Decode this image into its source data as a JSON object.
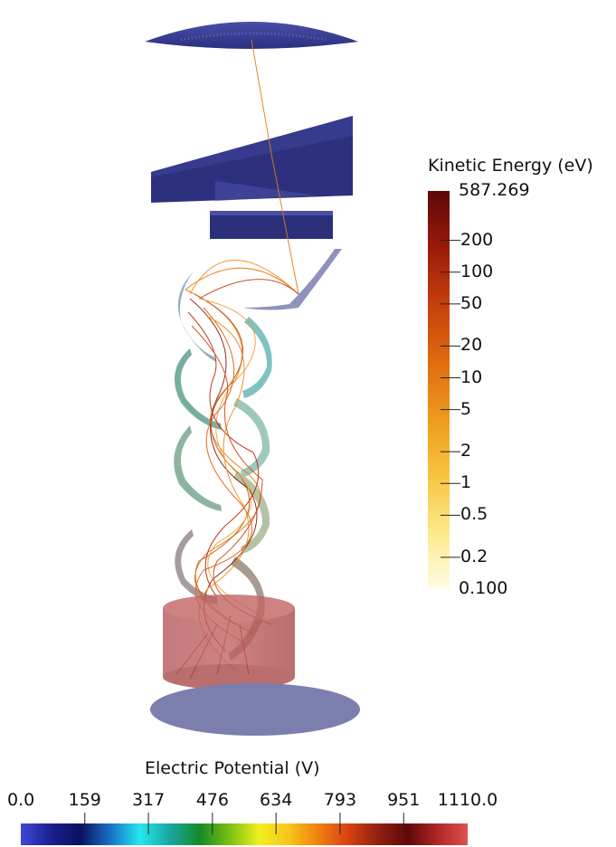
{
  "colors": {
    "background": "#ffffff",
    "electrode_dark": "#2c2f7a",
    "electrode_mid": "#3b3e8e",
    "detector_plate": "#7c7fae",
    "cylinder": "#a94a4a",
    "trajectory": "#e07a10",
    "trajectory_dark": "#8a1a08"
  },
  "chart_data": [
    {
      "type": "colorbar",
      "title": "Kinetic Energy (eV)",
      "scale": "log",
      "range": [
        0.1,
        587.269
      ],
      "ticks": [
        {
          "value": 587.269,
          "label": "587.269"
        },
        {
          "value": 200,
          "label": "200"
        },
        {
          "value": 100,
          "label": "100"
        },
        {
          "value": 50,
          "label": "50"
        },
        {
          "value": 20,
          "label": "20"
        },
        {
          "value": 10,
          "label": "10"
        },
        {
          "value": 5,
          "label": "5"
        },
        {
          "value": 2,
          "label": "2"
        },
        {
          "value": 1,
          "label": "1"
        },
        {
          "value": 0.5,
          "label": "0.5"
        },
        {
          "value": 0.2,
          "label": "0.2"
        },
        {
          "value": 0.1,
          "label": "0.100"
        }
      ],
      "colormap": [
        "#fffde6",
        "#fde98a",
        "#f7c440",
        "#ee9a1c",
        "#e06b10",
        "#c5400c",
        "#9a1a0a",
        "#5e0808"
      ]
    },
    {
      "type": "colorbar",
      "title": "Electric Potential (V)",
      "scale": "linear",
      "range": [
        0.0,
        1110.0
      ],
      "ticks": [
        {
          "value": 0.0,
          "label": "0.0"
        },
        {
          "value": 159,
          "label": "159"
        },
        {
          "value": 317,
          "label": "317"
        },
        {
          "value": 476,
          "label": "476"
        },
        {
          "value": 634,
          "label": "634"
        },
        {
          "value": 793,
          "label": "793"
        },
        {
          "value": 951,
          "label": "951"
        },
        {
          "value": 1110.0,
          "label": "1110.0"
        }
      ],
      "colormap": [
        "#3f48d6",
        "#1a2090",
        "#0a1060",
        "#1870c8",
        "#22e8ee",
        "#18a8a0",
        "#148a28",
        "#78c010",
        "#f0f020",
        "#f8c418",
        "#f08010",
        "#d84010",
        "#902010",
        "#600808",
        "#b02828",
        "#e05050"
      ]
    }
  ]
}
